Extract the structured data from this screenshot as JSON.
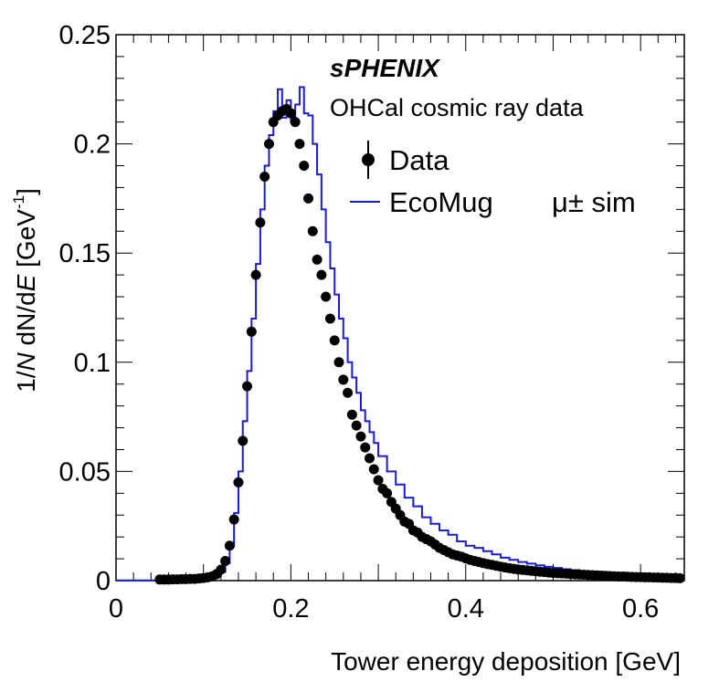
{
  "chart_data": {
    "type": "scatter",
    "xlim": [
      0,
      0.65
    ],
    "ylim": [
      0,
      0.25
    ],
    "xticks": [
      "0",
      "0.2",
      "0.4",
      "0.6"
    ],
    "xtick_values": [
      0,
      0.2,
      0.4,
      0.6
    ],
    "yticks": [
      "0",
      "0.05",
      "0.1",
      "0.15",
      "0.2",
      "0.25"
    ],
    "ytick_values": [
      0,
      0.05,
      0.1,
      0.15,
      0.2,
      0.25
    ],
    "xlabel": "Tower energy deposition [GeV]",
    "ylabel": {
      "p1": "1/",
      "p2": "N",
      "p3": " dN/d",
      "p4": "E",
      "p5": " [GeV",
      "p6": "-1",
      "p7": "]"
    },
    "experiment": "sPHENIX",
    "subtitle": "OHCal cosmic ray data",
    "legend": {
      "data_label": "Data",
      "sim_label": "EcoMug",
      "sim_suffix": "μ± sim"
    },
    "colors": {
      "data": "#000000",
      "sim": "#1a1adb"
    },
    "series": [
      {
        "name": "Data",
        "style": "points",
        "x": [
          0.05,
          0.055,
          0.06,
          0.065,
          0.07,
          0.075,
          0.08,
          0.085,
          0.09,
          0.095,
          0.1,
          0.105,
          0.11,
          0.115,
          0.12,
          0.125,
          0.13,
          0.135,
          0.14,
          0.145,
          0.15,
          0.155,
          0.16,
          0.165,
          0.17,
          0.175,
          0.18,
          0.185,
          0.19,
          0.195,
          0.2,
          0.205,
          0.21,
          0.215,
          0.22,
          0.225,
          0.23,
          0.235,
          0.24,
          0.245,
          0.25,
          0.255,
          0.26,
          0.265,
          0.27,
          0.275,
          0.28,
          0.285,
          0.29,
          0.295,
          0.3,
          0.305,
          0.31,
          0.315,
          0.32,
          0.325,
          0.33,
          0.335,
          0.34,
          0.345,
          0.35,
          0.355,
          0.36,
          0.365,
          0.37,
          0.375,
          0.38,
          0.385,
          0.39,
          0.395,
          0.4,
          0.405,
          0.41,
          0.415,
          0.42,
          0.425,
          0.43,
          0.435,
          0.44,
          0.445,
          0.45,
          0.455,
          0.46,
          0.465,
          0.47,
          0.475,
          0.48,
          0.485,
          0.49,
          0.495,
          0.5,
          0.505,
          0.51,
          0.515,
          0.52,
          0.525,
          0.53,
          0.535,
          0.54,
          0.545,
          0.55,
          0.555,
          0.56,
          0.565,
          0.57,
          0.575,
          0.58,
          0.585,
          0.59,
          0.595,
          0.6,
          0.605,
          0.61,
          0.615,
          0.62,
          0.625,
          0.63,
          0.635,
          0.64,
          0.645
        ],
        "y": [
          0.0005,
          0.0005,
          0.0005,
          0.0006,
          0.0006,
          0.0007,
          0.0007,
          0.0008,
          0.0008,
          0.001,
          0.0012,
          0.0015,
          0.002,
          0.003,
          0.005,
          0.009,
          0.016,
          0.028,
          0.045,
          0.064,
          0.089,
          0.114,
          0.14,
          0.164,
          0.185,
          0.2,
          0.21,
          0.213,
          0.215,
          0.216,
          0.214,
          0.21,
          0.2,
          0.19,
          0.175,
          0.16,
          0.147,
          0.14,
          0.13,
          0.12,
          0.11,
          0.1,
          0.092,
          0.086,
          0.076,
          0.071,
          0.066,
          0.061,
          0.056,
          0.051,
          0.046,
          0.042,
          0.04,
          0.036,
          0.033,
          0.03,
          0.027,
          0.026,
          0.023,
          0.022,
          0.02,
          0.019,
          0.018,
          0.0165,
          0.015,
          0.014,
          0.013,
          0.012,
          0.0115,
          0.011,
          0.0102,
          0.0095,
          0.009,
          0.0085,
          0.008,
          0.0076,
          0.0072,
          0.0068,
          0.0064,
          0.006,
          0.0057,
          0.0054,
          0.0051,
          0.0049,
          0.0047,
          0.0045,
          0.0043,
          0.0041,
          0.0039,
          0.0037,
          0.0035,
          0.0034,
          0.0033,
          0.0032,
          0.003,
          0.0029,
          0.0028,
          0.0027,
          0.0026,
          0.0025,
          0.0024,
          0.0023,
          0.0022,
          0.0021,
          0.002,
          0.0019,
          0.0019,
          0.0018,
          0.0017,
          0.0016,
          0.0016,
          0.0015,
          0.0015,
          0.0014,
          0.0014,
          0.0013,
          0.0013,
          0.0012,
          0.0012,
          0.0011
        ]
      },
      {
        "name": "EcoMug",
        "style": "step",
        "edges": [
          0,
          0.105,
          0.11,
          0.115,
          0.12,
          0.125,
          0.13,
          0.135,
          0.14,
          0.145,
          0.15,
          0.155,
          0.16,
          0.165,
          0.17,
          0.175,
          0.18,
          0.185,
          0.19,
          0.195,
          0.2,
          0.205,
          0.21,
          0.215,
          0.22,
          0.225,
          0.23,
          0.235,
          0.24,
          0.245,
          0.25,
          0.255,
          0.26,
          0.265,
          0.27,
          0.275,
          0.28,
          0.285,
          0.29,
          0.295,
          0.3,
          0.31,
          0.32,
          0.33,
          0.34,
          0.35,
          0.36,
          0.37,
          0.38,
          0.39,
          0.4,
          0.41,
          0.42,
          0.43,
          0.44,
          0.45,
          0.46,
          0.47,
          0.48,
          0.49,
          0.5,
          0.51,
          0.52,
          0.53,
          0.54,
          0.55,
          0.56,
          0.57,
          0.58,
          0.59,
          0.6,
          0.61,
          0.62,
          0.63,
          0.645
        ],
        "values": [
          0.0001,
          0.0005,
          0.001,
          0.002,
          0.004,
          0.008,
          0.016,
          0.031,
          0.05,
          0.073,
          0.096,
          0.12,
          0.145,
          0.17,
          0.19,
          0.204,
          0.215,
          0.225,
          0.212,
          0.22,
          0.21,
          0.218,
          0.226,
          0.214,
          0.213,
          0.2,
          0.186,
          0.17,
          0.155,
          0.143,
          0.131,
          0.12,
          0.111,
          0.1,
          0.093,
          0.086,
          0.078,
          0.073,
          0.068,
          0.063,
          0.057,
          0.05,
          0.044,
          0.038,
          0.034,
          0.029,
          0.026,
          0.023,
          0.021,
          0.018,
          0.016,
          0.015,
          0.0135,
          0.012,
          0.0105,
          0.0095,
          0.0085,
          0.0078,
          0.007,
          0.0063,
          0.0058,
          0.0052,
          0.0048,
          0.0043,
          0.004,
          0.0036,
          0.0033,
          0.003,
          0.0028,
          0.0025,
          0.0023,
          0.0021,
          0.0019,
          0.0015
        ]
      }
    ]
  }
}
